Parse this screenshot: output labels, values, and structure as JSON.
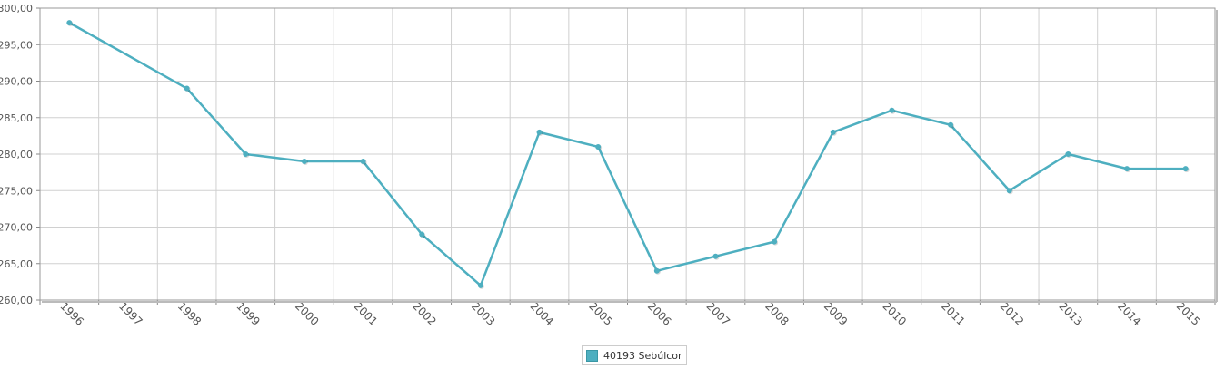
{
  "chart_data": {
    "type": "line",
    "title": "",
    "xlabel": "",
    "ylabel": "",
    "categories": [
      "1996",
      "1997",
      "1998",
      "1999",
      "2000",
      "2001",
      "2002",
      "2003",
      "2004",
      "2005",
      "2006",
      "2007",
      "2008",
      "2009",
      "2010",
      "2011",
      "2012",
      "2013",
      "2014",
      "2015"
    ],
    "series": [
      {
        "name": "40193 Sebúlcor",
        "color": "#4eafc0",
        "points": [
          {
            "x": 1996.0,
            "y": 298
          },
          {
            "x": 1998.0,
            "y": 289
          },
          {
            "x": 1999.0,
            "y": 280
          },
          {
            "x": 2000.0,
            "y": 279
          },
          {
            "x": 2001.0,
            "y": 279
          },
          {
            "x": 2002.0,
            "y": 269
          },
          {
            "x": 2003.0,
            "y": 262
          },
          {
            "x": 2004.0,
            "y": 283
          },
          {
            "x": 2005.0,
            "y": 281
          },
          {
            "x": 2006.0,
            "y": 264
          },
          {
            "x": 2007.0,
            "y": 266
          },
          {
            "x": 2008.0,
            "y": 268
          },
          {
            "x": 2009.0,
            "y": 283
          },
          {
            "x": 2010.0,
            "y": 286
          },
          {
            "x": 2011.0,
            "y": 284
          },
          {
            "x": 2012.0,
            "y": 275
          },
          {
            "x": 2013.0,
            "y": 280
          },
          {
            "x": 2014.0,
            "y": 278
          },
          {
            "x": 2015.0,
            "y": 278
          }
        ]
      }
    ],
    "ylim": [
      260,
      300
    ],
    "yticks": [
      "260,00",
      "265,00",
      "270,00",
      "275,00",
      "280,00",
      "285,00",
      "290,00",
      "295,00",
      "300,00"
    ],
    "grid": true,
    "legend_position": "bottom-center"
  }
}
